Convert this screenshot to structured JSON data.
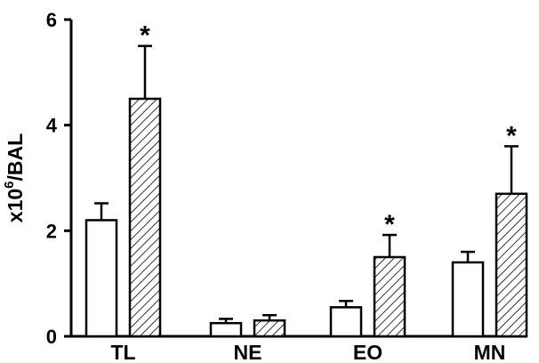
{
  "chart_data": {
    "type": "bar",
    "categories": [
      "TL",
      "NE",
      "EO",
      "MN"
    ],
    "series": [
      {
        "values": [
          2.2,
          0.25,
          0.55,
          1.4
        ],
        "errors": [
          0.32,
          0.08,
          0.12,
          0.2
        ],
        "fill": "open"
      },
      {
        "values": [
          4.5,
          0.3,
          1.5,
          2.7
        ],
        "errors": [
          1.0,
          0.1,
          0.42,
          0.9
        ],
        "fill": "hatched"
      }
    ],
    "significance": [
      "*",
      "",
      "*",
      "*"
    ],
    "ylabel_prefix": "x10",
    "ylabel_exponent": "6",
    "ylabel_suffix": "/BAL",
    "ylim": [
      0,
      6
    ],
    "yticks": [
      "0",
      "2",
      "4",
      "6"
    ],
    "grid": false,
    "colors": {
      "bar_stroke": "#000000",
      "open_fill": "#ffffff",
      "hatch": "#000000"
    }
  }
}
